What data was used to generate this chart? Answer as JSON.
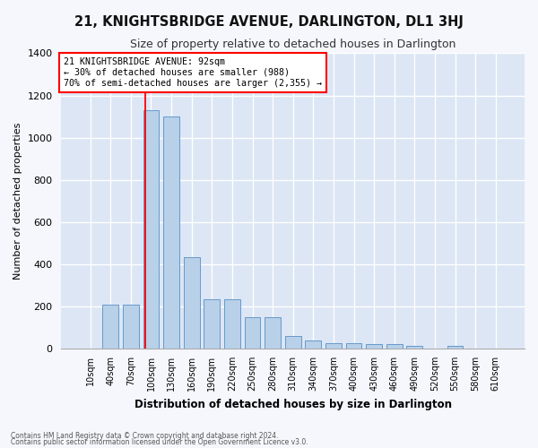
{
  "title": "21, KNIGHTSBRIDGE AVENUE, DARLINGTON, DL1 3HJ",
  "subtitle": "Size of property relative to detached houses in Darlington",
  "xlabel": "Distribution of detached houses by size in Darlington",
  "ylabel": "Number of detached properties",
  "categories": [
    "10sqm",
    "40sqm",
    "70sqm",
    "100sqm",
    "130sqm",
    "160sqm",
    "190sqm",
    "220sqm",
    "250sqm",
    "280sqm",
    "310sqm",
    "340sqm",
    "370sqm",
    "400sqm",
    "430sqm",
    "460sqm",
    "490sqm",
    "520sqm",
    "550sqm",
    "580sqm",
    "610sqm"
  ],
  "values": [
    0,
    210,
    210,
    1130,
    1100,
    435,
    235,
    235,
    150,
    150,
    60,
    40,
    25,
    25,
    20,
    20,
    15,
    0,
    15,
    0,
    0
  ],
  "bar_color": "#b8d0e8",
  "bar_edge_color": "#6699cc",
  "background_color": "#dce6f5",
  "grid_color": "#ffffff",
  "fig_background": "#f5f7fc",
  "ylim": [
    0,
    1400
  ],
  "yticks": [
    0,
    200,
    400,
    600,
    800,
    1000,
    1200,
    1400
  ],
  "annotation_line1": "21 KNIGHTSBRIDGE AVENUE: 92sqm",
  "annotation_line2": "← 30% of detached houses are smaller (988)",
  "annotation_line3": "70% of semi-detached houses are larger (2,355) →",
  "red_line_x": 2.73,
  "footer1": "Contains HM Land Registry data © Crown copyright and database right 2024.",
  "footer2": "Contains public sector information licensed under the Open Government Licence v3.0."
}
